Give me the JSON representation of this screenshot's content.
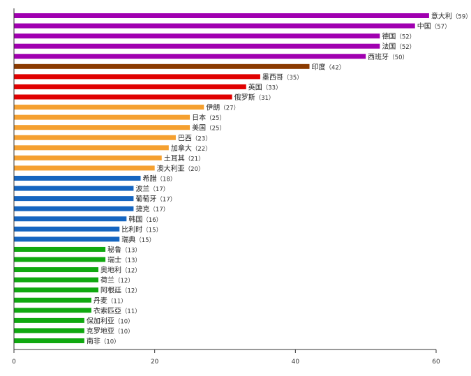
{
  "chart_data": {
    "type": "bar",
    "orientation": "horizontal",
    "title": "",
    "xlabel": "",
    "ylabel": "",
    "xlim": [
      0,
      60
    ],
    "x_ticks": [
      0,
      20,
      40,
      60
    ],
    "grid": false,
    "legend": "none",
    "label_format": "{name} ({value})",
    "bars": [
      {
        "label": "意大利",
        "value": 59,
        "color": "#a000b0"
      },
      {
        "label": "中国",
        "value": 57,
        "color": "#a000b0"
      },
      {
        "label": "德国",
        "value": 52,
        "color": "#a000b0"
      },
      {
        "label": "法国",
        "value": 52,
        "color": "#a000b0"
      },
      {
        "label": "西班牙",
        "value": 50,
        "color": "#a000b0"
      },
      {
        "label": "印度",
        "value": 42,
        "color": "#8b3a00"
      },
      {
        "label": "墨西哥",
        "value": 35,
        "color": "#e00000"
      },
      {
        "label": "英国",
        "value": 33,
        "color": "#e00000"
      },
      {
        "label": "俄罗斯",
        "value": 31,
        "color": "#e00000"
      },
      {
        "label": "伊朗",
        "value": 27,
        "color": "#f5a030"
      },
      {
        "label": "日本",
        "value": 25,
        "color": "#f5a030"
      },
      {
        "label": "美国",
        "value": 25,
        "color": "#f5a030"
      },
      {
        "label": "巴西",
        "value": 23,
        "color": "#f5a030"
      },
      {
        "label": "加拿大",
        "value": 22,
        "color": "#f5a030"
      },
      {
        "label": "土耳其",
        "value": 21,
        "color": "#f5a030"
      },
      {
        "label": "澳大利亚",
        "value": 20,
        "color": "#f5a030"
      },
      {
        "label": "希腊",
        "value": 18,
        "color": "#1565c0"
      },
      {
        "label": "波兰",
        "value": 17,
        "color": "#1565c0"
      },
      {
        "label": "葡萄牙",
        "value": 17,
        "color": "#1565c0"
      },
      {
        "label": "捷克",
        "value": 17,
        "color": "#1565c0"
      },
      {
        "label": "韩国",
        "value": 16,
        "color": "#1565c0"
      },
      {
        "label": "比利时",
        "value": 15,
        "color": "#1565c0"
      },
      {
        "label": "瑞典",
        "value": 15,
        "color": "#1565c0"
      },
      {
        "label": "秘鲁",
        "value": 13,
        "color": "#10a810"
      },
      {
        "label": "瑞士",
        "value": 13,
        "color": "#10a810"
      },
      {
        "label": "奥地利",
        "value": 12,
        "color": "#10a810"
      },
      {
        "label": "荷兰",
        "value": 12,
        "color": "#10a810"
      },
      {
        "label": "阿根廷",
        "value": 12,
        "color": "#10a810"
      },
      {
        "label": "丹麦",
        "value": 11,
        "color": "#10a810"
      },
      {
        "label": "衣索匹亞",
        "value": 11,
        "color": "#10a810"
      },
      {
        "label": "保加利亚",
        "value": 10,
        "color": "#10a810"
      },
      {
        "label": "克罗地亚",
        "value": 10,
        "color": "#10a810"
      },
      {
        "label": "南非",
        "value": 10,
        "color": "#10a810"
      }
    ]
  }
}
